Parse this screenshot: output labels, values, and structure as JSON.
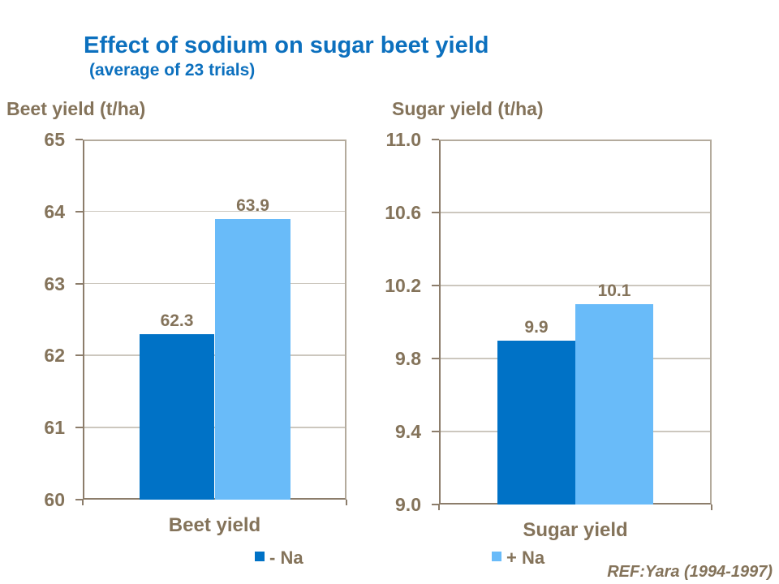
{
  "page": {
    "title": "Effect of sodium on sugar beet yield",
    "subtitle": "(average of 23 trials)",
    "reference": "REF:Yara (1994-1997)"
  },
  "colors": {
    "title": "#0C70BE",
    "text": "#84735A",
    "axis": "#8C7D6B",
    "frame": "#B4AB9D",
    "gridline": "#CCC7BE",
    "minus_na": "#0072C6",
    "plus_na": "#69BBF9",
    "background": "#FFFFFF"
  },
  "chart_data": [
    {
      "type": "bar",
      "key": "beet-yield",
      "title": "Beet yield (t/ha)",
      "categories": [
        "Beet yield"
      ],
      "series": [
        {
          "name": "- Na",
          "values": [
            62.3
          ],
          "data_label": "62.3",
          "color": "#0072C6"
        },
        {
          "name": "+ Na",
          "values": [
            63.9
          ],
          "data_label": "63.9",
          "color": "#69BBF9"
        }
      ],
      "ylim": [
        60,
        65
      ],
      "ytick_labels": [
        "65",
        "64",
        "63",
        "62",
        "61",
        "60"
      ],
      "grid": true,
      "legend": {
        "label": "- Na",
        "color": "#0072C6",
        "position": "bottom"
      }
    },
    {
      "type": "bar",
      "key": "sugar-yield",
      "title": "Sugar yield (t/ha)",
      "categories": [
        "Sugar yield"
      ],
      "series": [
        {
          "name": "- Na",
          "values": [
            9.9
          ],
          "data_label": "9.9",
          "color": "#0072C6"
        },
        {
          "name": "+ Na",
          "values": [
            10.1
          ],
          "data_label": "10.1",
          "color": "#69BBF9"
        }
      ],
      "ylim": [
        9.0,
        11.0
      ],
      "ytick_labels": [
        "11.0",
        "10.6",
        "10.2",
        "9.8",
        "9.4",
        "9.0"
      ],
      "grid": true,
      "legend": {
        "label": "+ Na",
        "color": "#69BBF9",
        "position": "bottom"
      }
    }
  ]
}
